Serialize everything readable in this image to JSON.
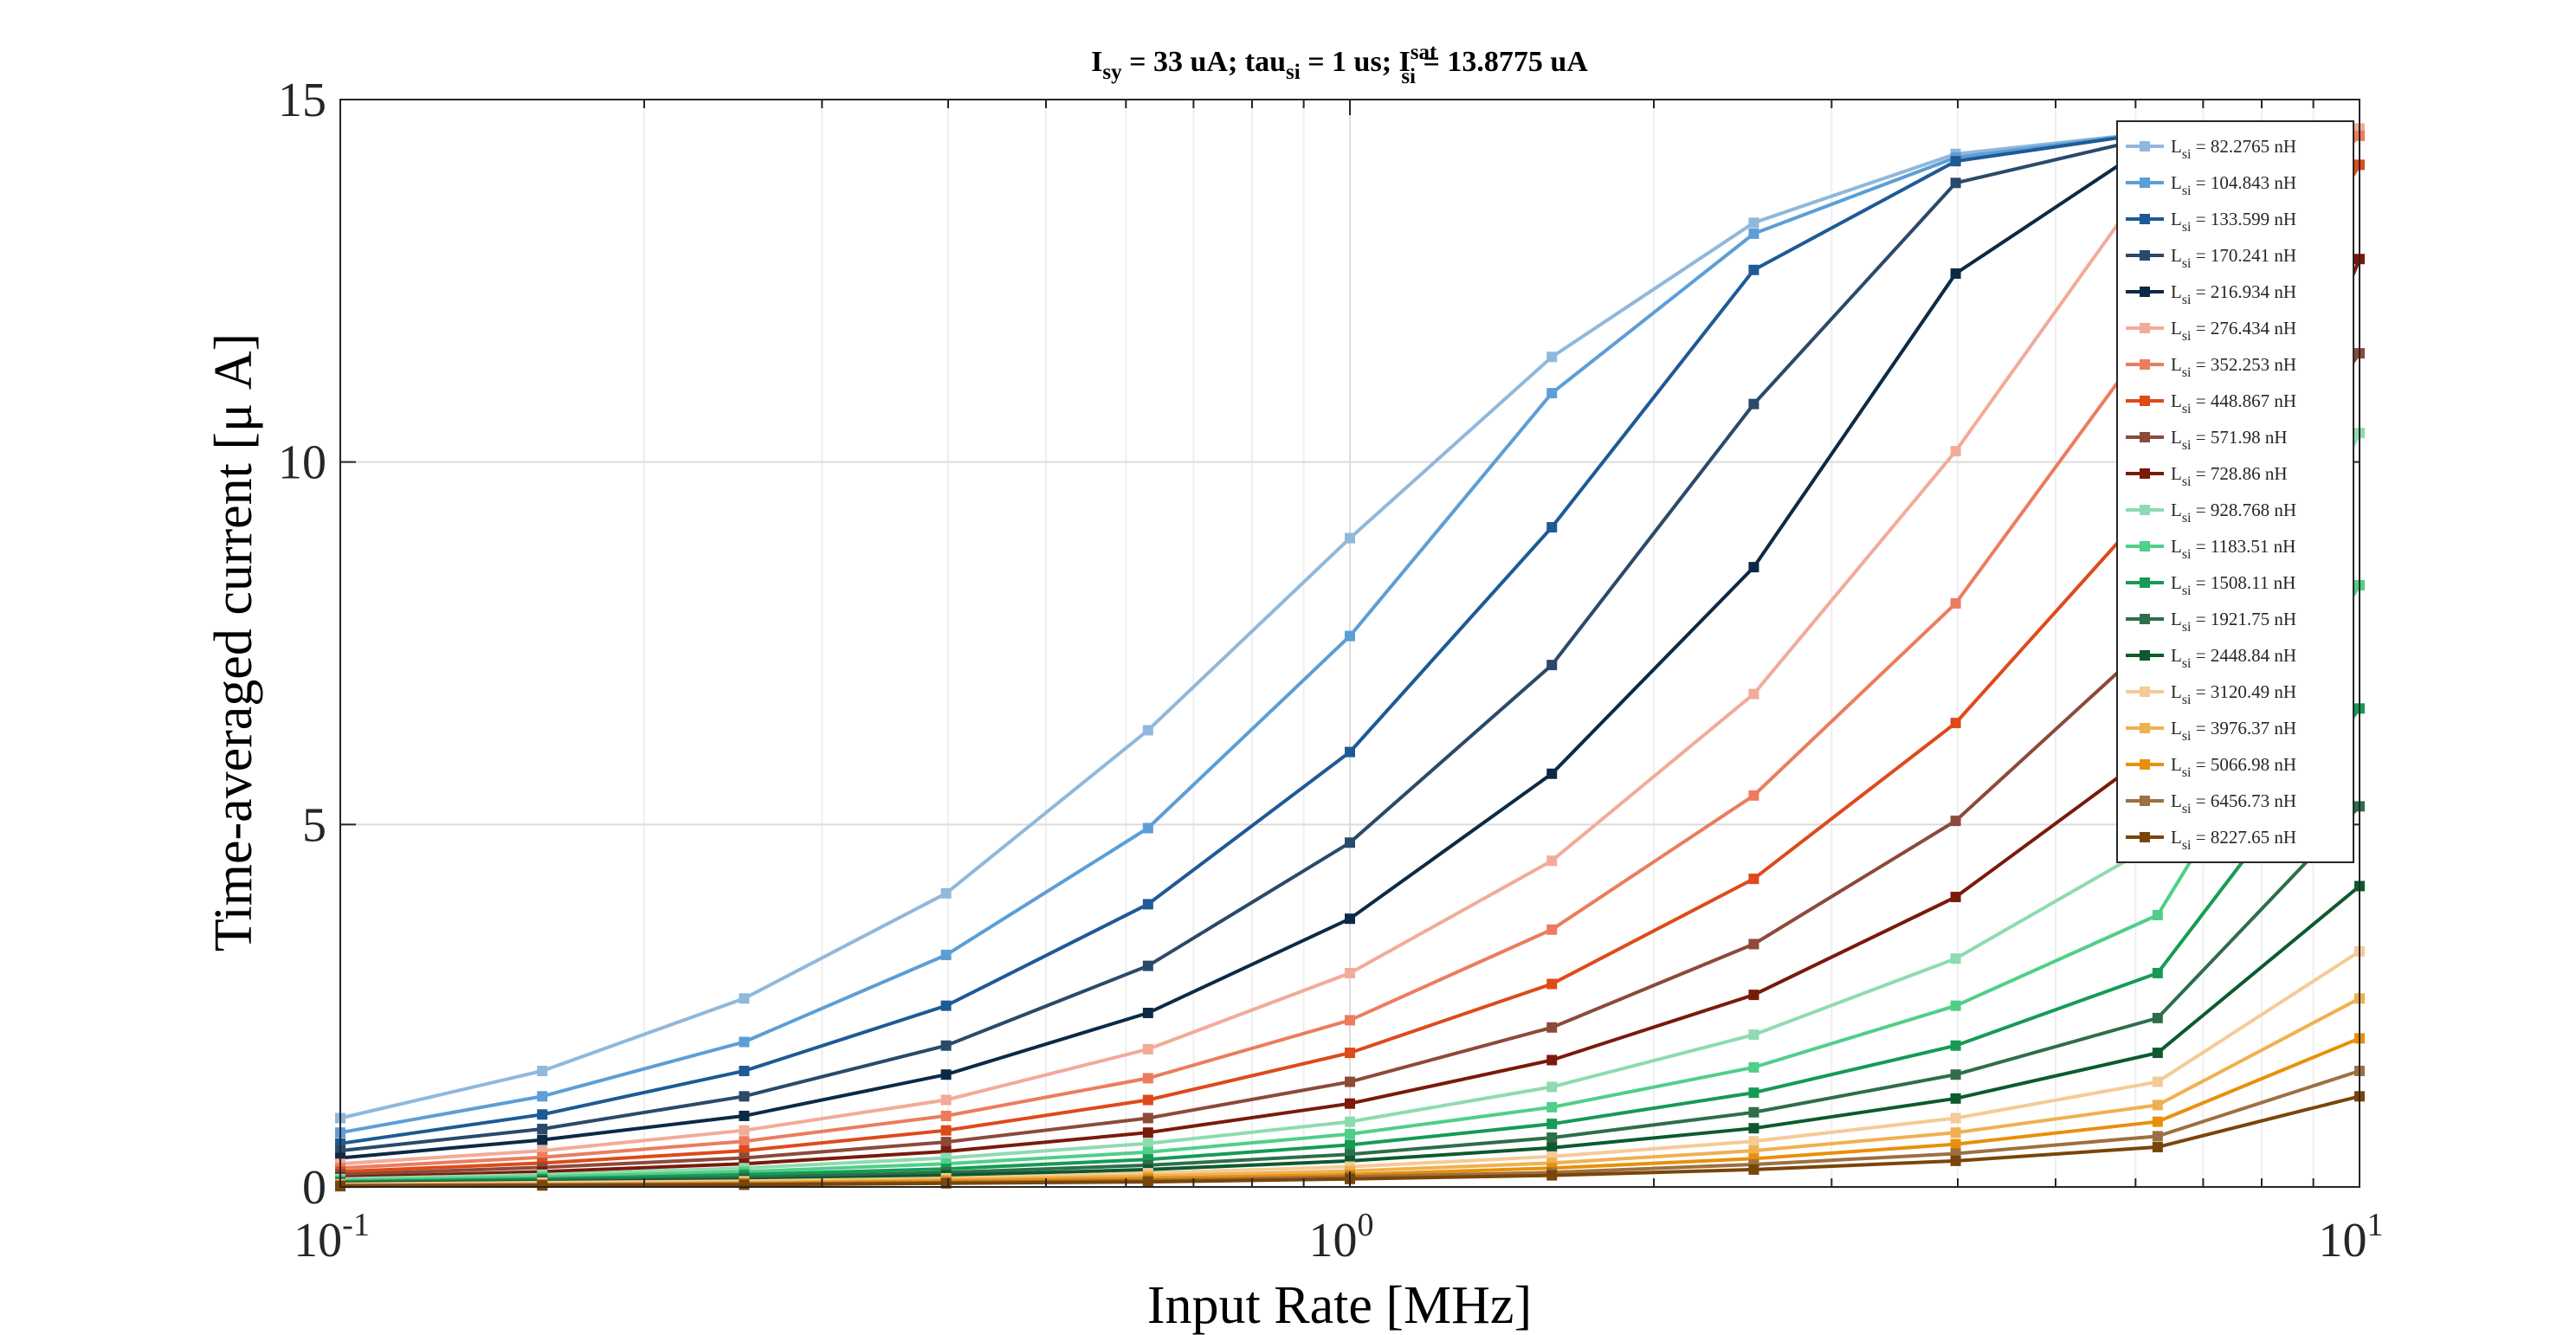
{
  "chart_data": {
    "type": "line",
    "title": {
      "p1": "I",
      "p1_sub": "sy",
      "p2": " = 33 uA; tau",
      "p2_sub": "si",
      "p3": " = 1 us; I",
      "p3_sup": "sat",
      "p3_sub": "si",
      "p4": " = 13.8775 uA"
    },
    "xlabel": "Input Rate [MHz]",
    "ylabel": "Time-averaged current [μ A]",
    "xscale": "log",
    "xlim": [
      0.1,
      10
    ],
    "ylim": [
      0,
      15
    ],
    "xticks": [
      {
        "value": 0.1,
        "base": "10",
        "exp": "-1"
      },
      {
        "value": 1,
        "base": "10",
        "exp": "0"
      },
      {
        "value": 10,
        "base": "10",
        "exp": "1"
      }
    ],
    "yticks": [
      {
        "value": 0,
        "label": "0"
      },
      {
        "value": 5,
        "label": "5"
      },
      {
        "value": 10,
        "label": "10"
      },
      {
        "value": 15,
        "label": "15"
      }
    ],
    "grid": true,
    "legend_position": "top-right",
    "x": [
      0.1,
      0.1585,
      0.2512,
      0.3981,
      0.631,
      1.0,
      1.585,
      2.512,
      3.981,
      6.31,
      10.0
    ],
    "series": [
      {
        "name": "82.2765 nH",
        "color": "#8fb8dc",
        "values": [
          0.95,
          1.6,
          2.6,
          4.05,
          6.3,
          8.95,
          11.45,
          13.3,
          14.25,
          14.55,
          14.6
        ]
      },
      {
        "name": "104.843 nH",
        "color": "#5c9ed6",
        "values": [
          0.75,
          1.25,
          2.0,
          3.2,
          4.95,
          7.6,
          10.95,
          13.15,
          14.2,
          14.55,
          14.6
        ]
      },
      {
        "name": "133.599 nH",
        "color": "#1d5a96",
        "values": [
          0.6,
          1.0,
          1.6,
          2.5,
          3.9,
          6.0,
          9.1,
          12.65,
          14.15,
          14.55,
          14.6
        ]
      },
      {
        "name": "170.241 nH",
        "color": "#2a4a6b",
        "values": [
          0.5,
          0.8,
          1.25,
          1.95,
          3.05,
          4.75,
          7.2,
          10.8,
          13.85,
          14.5,
          14.6
        ]
      },
      {
        "name": "216.934 nH",
        "color": "#0b2a47",
        "values": [
          0.4,
          0.65,
          0.98,
          1.55,
          2.4,
          3.7,
          5.7,
          8.55,
          12.6,
          14.45,
          14.6
        ]
      },
      {
        "name": "276.434 nH",
        "color": "#f2ab98",
        "values": [
          0.32,
          0.5,
          0.78,
          1.2,
          1.9,
          2.95,
          4.5,
          6.8,
          10.15,
          14.05,
          14.6
        ]
      },
      {
        "name": "352.253 nH",
        "color": "#ec7c5e",
        "values": [
          0.26,
          0.41,
          0.63,
          0.98,
          1.5,
          2.3,
          3.55,
          5.4,
          8.05,
          11.85,
          14.5
        ]
      },
      {
        "name": "448.867 nH",
        "color": "#de4a1a",
        "values": [
          0.21,
          0.33,
          0.5,
          0.78,
          1.2,
          1.85,
          2.8,
          4.25,
          6.4,
          9.5,
          14.1
        ]
      },
      {
        "name": "571.98 nH",
        "color": "#8c4a3a",
        "values": [
          0.17,
          0.27,
          0.4,
          0.62,
          0.95,
          1.45,
          2.2,
          3.35,
          5.05,
          7.6,
          11.5
        ]
      },
      {
        "name": "728.86 nH",
        "color": "#7a1a0a",
        "values": [
          0.13,
          0.21,
          0.32,
          0.49,
          0.75,
          1.15,
          1.75,
          2.65,
          4.0,
          6.05,
          12.8
        ]
      },
      {
        "name": "928.768 nH",
        "color": "#8edbb0",
        "values": [
          0.11,
          0.17,
          0.26,
          0.4,
          0.6,
          0.9,
          1.38,
          2.1,
          3.15,
          4.75,
          10.4
        ]
      },
      {
        "name": "1183.51 nH",
        "color": "#4fcf88",
        "values": [
          0.09,
          0.14,
          0.21,
          0.32,
          0.48,
          0.73,
          1.1,
          1.65,
          2.5,
          3.75,
          8.3
        ]
      },
      {
        "name": "1508.11 nH",
        "color": "#159b55",
        "values": [
          0.07,
          0.11,
          0.17,
          0.25,
          0.38,
          0.58,
          0.87,
          1.3,
          1.95,
          2.95,
          6.6
        ]
      },
      {
        "name": "1921.75 nH",
        "color": "#2e6e4b",
        "values": [
          0.06,
          0.09,
          0.13,
          0.2,
          0.3,
          0.45,
          0.68,
          1.03,
          1.55,
          2.33,
          5.25
        ]
      },
      {
        "name": "2448.84 nH",
        "color": "#0c5a2e",
        "values": [
          0.05,
          0.07,
          0.1,
          0.16,
          0.24,
          0.36,
          0.54,
          0.81,
          1.22,
          1.85,
          4.15
        ]
      },
      {
        "name": "3120.49 nH",
        "color": "#f4cb96",
        "values": [
          0.04,
          0.06,
          0.08,
          0.12,
          0.19,
          0.28,
          0.42,
          0.63,
          0.95,
          1.45,
          3.25
        ]
      },
      {
        "name": "3976.37 nH",
        "color": "#f0b050",
        "values": [
          0.03,
          0.04,
          0.06,
          0.1,
          0.15,
          0.22,
          0.33,
          0.5,
          0.75,
          1.13,
          2.6
        ]
      },
      {
        "name": "5066.98 nH",
        "color": "#e8900a",
        "values": [
          0.02,
          0.03,
          0.05,
          0.08,
          0.12,
          0.17,
          0.26,
          0.39,
          0.59,
          0.9,
          2.05
        ]
      },
      {
        "name": "6456.73 nH",
        "color": "#9c7040",
        "values": [
          0.02,
          0.03,
          0.04,
          0.06,
          0.09,
          0.14,
          0.2,
          0.31,
          0.46,
          0.7,
          1.6
        ]
      },
      {
        "name": "8227.65 nH",
        "color": "#7a4508",
        "values": [
          0.01,
          0.02,
          0.03,
          0.05,
          0.07,
          0.11,
          0.16,
          0.24,
          0.36,
          0.55,
          1.25
        ]
      }
    ],
    "legend_prefix": "L",
    "legend_prefix_sub": "si",
    "legend_eq": " = "
  }
}
